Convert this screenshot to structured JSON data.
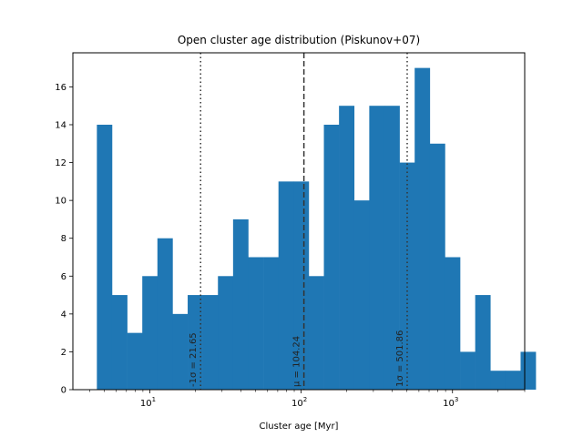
{
  "chart_data": {
    "type": "bar",
    "title": "Open cluster age distribution (Piskunov+07)",
    "xlabel": "Cluster age [Myr]",
    "ylabel": "",
    "xscale": "log",
    "xlim": [
      3.1,
      3000
    ],
    "ylim": [
      0,
      17.8
    ],
    "bar_color": "#1f77b4",
    "bins": {
      "log10_start": 0.65,
      "log10_width": 0.1,
      "counts": [
        14,
        5,
        3,
        6,
        8,
        4,
        5,
        5,
        6,
        9,
        7,
        7,
        11,
        11,
        6,
        14,
        15,
        10,
        15,
        15,
        12,
        17,
        13,
        7,
        2,
        5,
        1,
        1,
        2
      ]
    },
    "y_ticks": [
      {
        "value": 0,
        "label": "0"
      },
      {
        "value": 2,
        "label": "2"
      },
      {
        "value": 4,
        "label": "4"
      },
      {
        "value": 6,
        "label": "6"
      },
      {
        "value": 8,
        "label": "8"
      },
      {
        "value": 10,
        "label": "10"
      },
      {
        "value": 12,
        "label": "12"
      },
      {
        "value": 14,
        "label": "14"
      },
      {
        "value": 16,
        "label": "16"
      }
    ],
    "x_major_ticks": [
      {
        "value": 10,
        "label": "10",
        "exp": "1"
      },
      {
        "value": 100,
        "label": "10",
        "exp": "2"
      },
      {
        "value": 1000,
        "label": "10",
        "exp": "3"
      }
    ],
    "reference_lines": [
      {
        "value": 21.65,
        "label": "-1σ = 21.65",
        "style": "dotted",
        "color": "#333333"
      },
      {
        "value": 104.24,
        "label": "μ = 104.24",
        "style": "dashed",
        "color": "#333333"
      },
      {
        "value": 501.86,
        "label": "1σ = 501.86",
        "style": "dotted",
        "color": "#333333"
      }
    ],
    "grid": false,
    "legend": "none"
  }
}
